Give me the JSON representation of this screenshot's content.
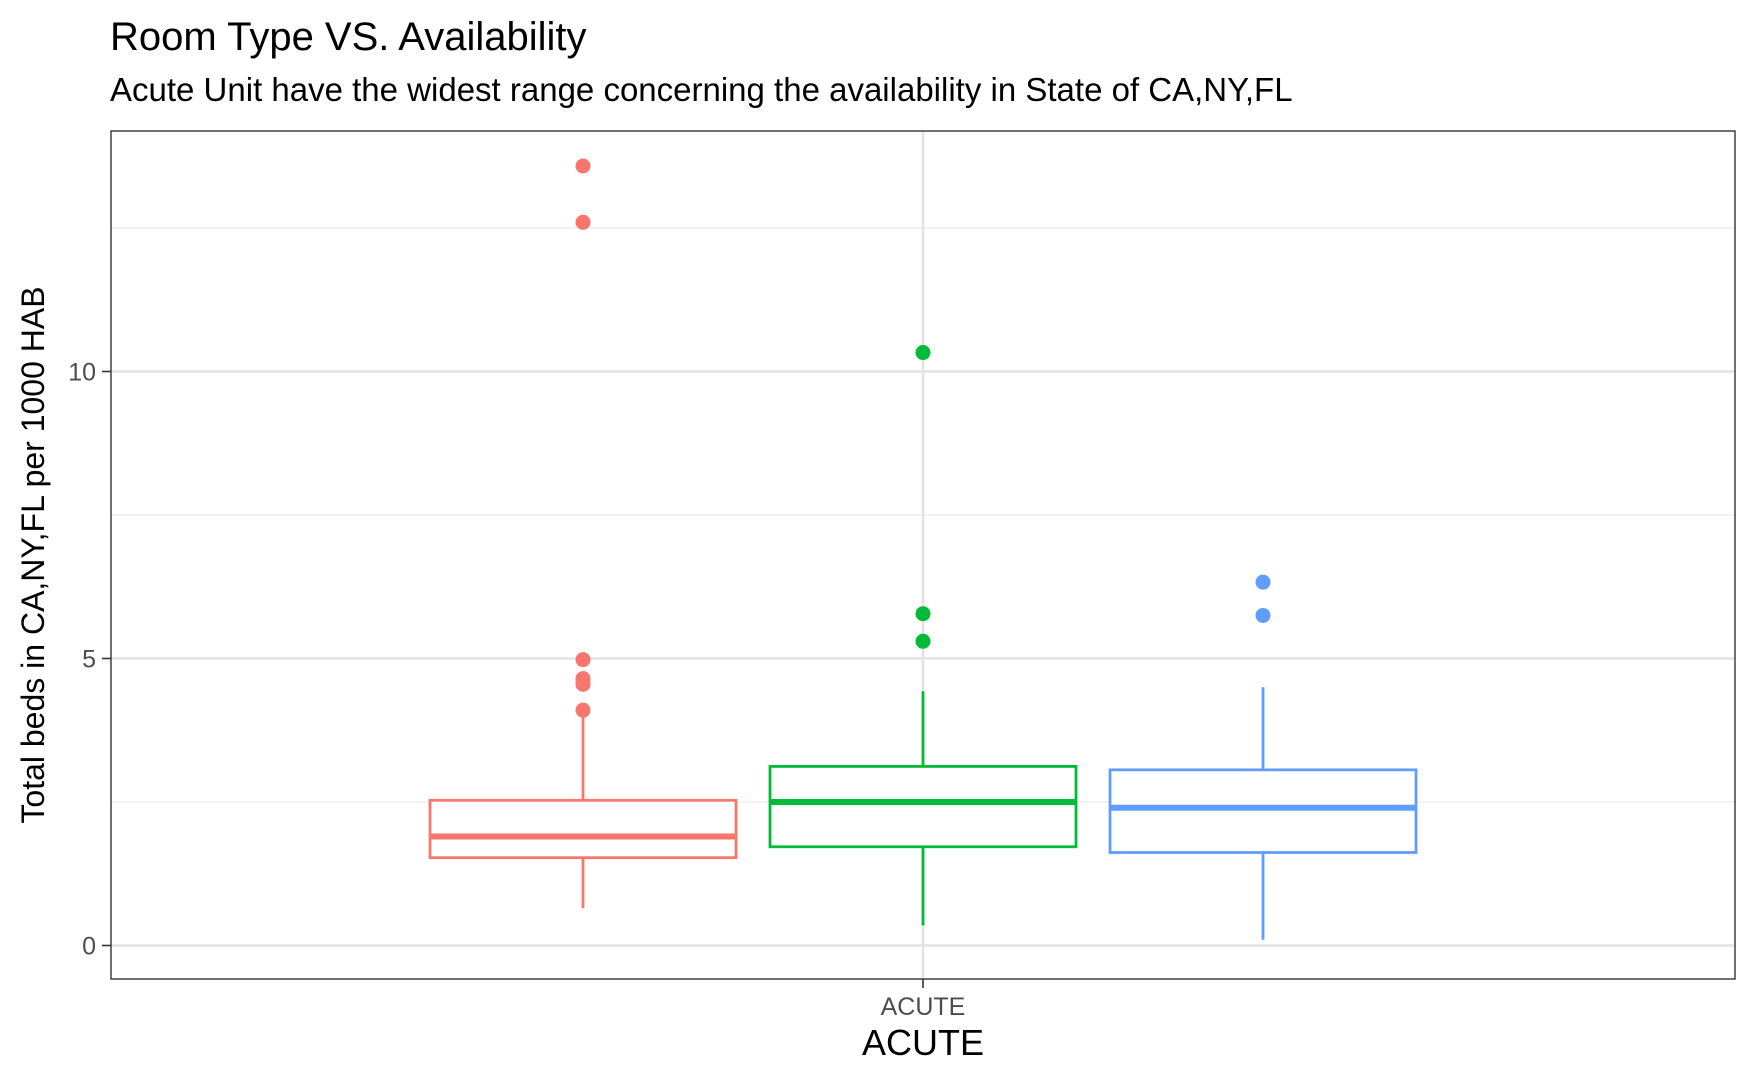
{
  "chart_data": {
    "type": "boxplot",
    "title": "Room Type VS. Availability",
    "subtitle": "Acute Unit  have the widest range concerning the availability in State of CA,NY,FL",
    "xlabel": "ACUTE",
    "ylabel": "Total beds in CA,NY,FL per 1000 HAB",
    "categories": [
      "ACUTE"
    ],
    "ylim": [
      -0.55,
      14.2
    ],
    "yticks": [
      0,
      5,
      10
    ],
    "ytick_labels": [
      "0",
      "5",
      "10"
    ],
    "grid": true,
    "legend": "none",
    "series": [
      {
        "color": "#F8766D",
        "whisker_low": 0.65,
        "q1": 1.53,
        "median": 1.9,
        "q3": 2.53,
        "whisker_high": 4.03,
        "outliers": [
          4.1,
          4.55,
          4.62,
          4.65,
          4.98,
          12.6,
          13.58
        ]
      },
      {
        "color": "#00BA38",
        "whisker_low": 0.35,
        "q1": 1.72,
        "median": 2.5,
        "q3": 3.12,
        "whisker_high": 4.43,
        "outliers": [
          5.3,
          5.78,
          10.33
        ]
      },
      {
        "color": "#619CFF",
        "whisker_low": 0.1,
        "q1": 1.62,
        "median": 2.4,
        "q3": 3.06,
        "whisker_high": 4.5,
        "outliers": [
          5.75,
          6.33
        ]
      }
    ]
  }
}
